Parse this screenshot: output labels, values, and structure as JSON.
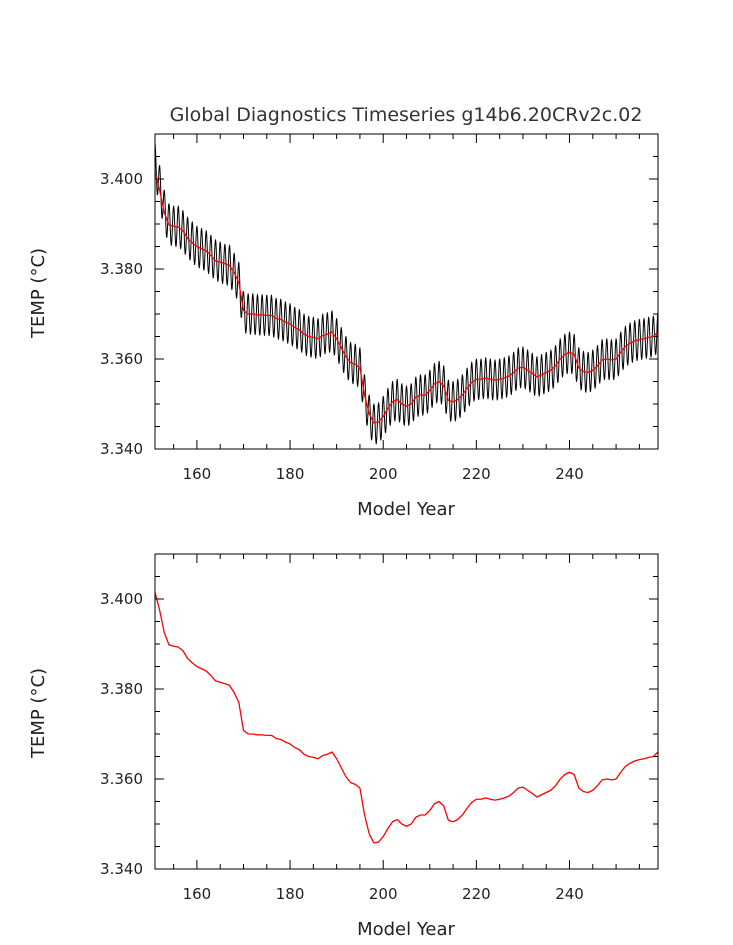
{
  "chart_data": [
    {
      "type": "line",
      "title": "Global Diagnostics Timeseries g14b6.20CRv2c.02",
      "xlabel": "Model Year",
      "ylabel": "TEMP (°C)",
      "xlim": [
        151,
        259
      ],
      "ylim": [
        3.34,
        3.41
      ],
      "xticks": [
        "160",
        "180",
        "200",
        "220",
        "240"
      ],
      "yticks": [
        "3.340",
        "3.360",
        "3.380",
        "3.400"
      ],
      "grid": false,
      "series": [
        {
          "kind": "monthly",
          "color": "#000000",
          "seasonal_amplitude": 0.0045,
          "x": [
            151,
            152,
            153,
            154,
            155,
            156,
            157,
            158,
            159,
            160,
            161,
            162,
            163,
            164,
            165,
            166,
            167,
            168,
            169,
            170,
            171,
            172,
            173,
            174,
            175,
            176,
            177,
            178,
            179,
            180,
            181,
            182,
            183,
            184,
            185,
            186,
            187,
            188,
            189,
            190,
            191,
            192,
            193,
            194,
            195,
            196,
            197,
            198,
            199,
            200,
            201,
            202,
            203,
            204,
            205,
            206,
            207,
            208,
            209,
            210,
            211,
            212,
            213,
            214,
            215,
            216,
            217,
            218,
            219,
            220,
            221,
            222,
            223,
            224,
            225,
            226,
            227,
            228,
            229,
            230,
            231,
            232,
            233,
            234,
            235,
            236,
            237,
            238,
            239,
            240,
            241,
            242,
            243,
            244,
            245,
            246,
            247,
            248,
            249,
            250,
            251,
            252,
            253,
            254,
            255,
            256,
            257,
            258,
            259
          ],
          "y": [
            3.4035,
            3.3985,
            3.393,
            3.39,
            3.3895,
            3.3895,
            3.3885,
            3.387,
            3.386,
            3.385,
            3.3845,
            3.384,
            3.383,
            3.382,
            3.3815,
            3.381,
            3.3808,
            3.379,
            3.377,
            3.3705,
            3.37,
            3.37,
            3.3698,
            3.3698,
            3.3697,
            3.3697,
            3.369,
            3.3688,
            3.3682,
            3.3678,
            3.367,
            3.3665,
            3.3655,
            3.365,
            3.3648,
            3.3645,
            3.3655,
            3.3658,
            3.3662,
            3.3645,
            3.3625,
            3.3605,
            3.3592,
            3.3588,
            3.358,
            3.352,
            3.3475,
            3.3455,
            3.3458,
            3.3472,
            3.349,
            3.3505,
            3.351,
            3.35,
            3.3495,
            3.35,
            3.3515,
            3.352,
            3.352,
            3.353,
            3.3545,
            3.355,
            3.354,
            3.3508,
            3.3505,
            3.351,
            3.352,
            3.3535,
            3.3548,
            3.3555,
            3.3555,
            3.3558,
            3.3555,
            3.3553,
            3.3555,
            3.3558,
            3.3562,
            3.357,
            3.358,
            3.3582,
            3.3575,
            3.3568,
            3.356,
            3.3565,
            3.357,
            3.3575,
            3.3585,
            3.36,
            3.361,
            3.3615,
            3.361,
            3.358,
            3.3572,
            3.357,
            3.3575,
            3.3585,
            3.3598,
            3.36,
            3.3598,
            3.36,
            3.3615,
            3.3628,
            3.3635,
            3.364,
            3.3643,
            3.3645,
            3.3648,
            3.365,
            3.366
          ]
        },
        {
          "kind": "smoothed",
          "color": "#ff0000",
          "x": [
            151,
            152,
            153,
            154,
            155,
            156,
            157,
            158,
            159,
            160,
            161,
            162,
            163,
            164,
            165,
            166,
            167,
            168,
            169,
            170,
            171,
            172,
            173,
            174,
            175,
            176,
            177,
            178,
            179,
            180,
            181,
            182,
            183,
            184,
            185,
            186,
            187,
            188,
            189,
            190,
            191,
            192,
            193,
            194,
            195,
            196,
            197,
            198,
            199,
            200,
            201,
            202,
            203,
            204,
            205,
            206,
            207,
            208,
            209,
            210,
            211,
            212,
            213,
            214,
            215,
            216,
            217,
            218,
            219,
            220,
            221,
            222,
            223,
            224,
            225,
            226,
            227,
            228,
            229,
            230,
            231,
            232,
            233,
            234,
            235,
            236,
            237,
            238,
            239,
            240,
            241,
            242,
            243,
            244,
            245,
            246,
            247,
            248,
            249,
            250,
            251,
            252,
            253,
            254,
            255,
            256,
            257,
            258,
            259
          ],
          "y": [
            3.4015,
            3.3975,
            3.3925,
            3.3898,
            3.3895,
            3.3893,
            3.3885,
            3.3868,
            3.3858,
            3.385,
            3.3845,
            3.384,
            3.383,
            3.3818,
            3.3815,
            3.3812,
            3.3808,
            3.3792,
            3.377,
            3.3708,
            3.37,
            3.37,
            3.3698,
            3.3698,
            3.3697,
            3.3697,
            3.369,
            3.3688,
            3.3682,
            3.3678,
            3.367,
            3.3665,
            3.3655,
            3.365,
            3.3648,
            3.3645,
            3.3652,
            3.3655,
            3.366,
            3.3645,
            3.3625,
            3.3605,
            3.3592,
            3.3588,
            3.358,
            3.352,
            3.3478,
            3.3458,
            3.346,
            3.3472,
            3.349,
            3.3505,
            3.351,
            3.35,
            3.3495,
            3.35,
            3.3515,
            3.352,
            3.352,
            3.353,
            3.3545,
            3.355,
            3.354,
            3.3508,
            3.3505,
            3.351,
            3.352,
            3.3535,
            3.3548,
            3.3555,
            3.3555,
            3.3558,
            3.3555,
            3.3553,
            3.3555,
            3.3558,
            3.3562,
            3.357,
            3.358,
            3.3582,
            3.3575,
            3.3568,
            3.356,
            3.3565,
            3.357,
            3.3575,
            3.3585,
            3.36,
            3.361,
            3.3615,
            3.361,
            3.358,
            3.3572,
            3.357,
            3.3575,
            3.3585,
            3.3598,
            3.36,
            3.3598,
            3.36,
            3.3615,
            3.3628,
            3.3635,
            3.364,
            3.3643,
            3.3645,
            3.3648,
            3.365,
            3.366
          ]
        }
      ]
    },
    {
      "type": "line",
      "xlabel": "Model Year",
      "ylabel": "TEMP (°C)",
      "xlim": [
        151,
        259
      ],
      "ylim": [
        3.34,
        3.41
      ],
      "xticks": [
        "160",
        "180",
        "200",
        "220",
        "240"
      ],
      "yticks": [
        "3.340",
        "3.360",
        "3.380",
        "3.400"
      ],
      "grid": false,
      "series": [
        {
          "kind": "smoothed",
          "color": "#ff0000",
          "x": [
            151,
            152,
            153,
            154,
            155,
            156,
            157,
            158,
            159,
            160,
            161,
            162,
            163,
            164,
            165,
            166,
            167,
            168,
            169,
            170,
            171,
            172,
            173,
            174,
            175,
            176,
            177,
            178,
            179,
            180,
            181,
            182,
            183,
            184,
            185,
            186,
            187,
            188,
            189,
            190,
            191,
            192,
            193,
            194,
            195,
            196,
            197,
            198,
            199,
            200,
            201,
            202,
            203,
            204,
            205,
            206,
            207,
            208,
            209,
            210,
            211,
            212,
            213,
            214,
            215,
            216,
            217,
            218,
            219,
            220,
            221,
            222,
            223,
            224,
            225,
            226,
            227,
            228,
            229,
            230,
            231,
            232,
            233,
            234,
            235,
            236,
            237,
            238,
            239,
            240,
            241,
            242,
            243,
            244,
            245,
            246,
            247,
            248,
            249,
            250,
            251,
            252,
            253,
            254,
            255,
            256,
            257,
            258,
            259
          ],
          "y": [
            3.4015,
            3.3975,
            3.3925,
            3.3898,
            3.3895,
            3.3893,
            3.3885,
            3.3868,
            3.3858,
            3.385,
            3.3845,
            3.384,
            3.383,
            3.3818,
            3.3815,
            3.3812,
            3.3808,
            3.3792,
            3.377,
            3.3708,
            3.37,
            3.37,
            3.3698,
            3.3698,
            3.3697,
            3.3697,
            3.369,
            3.3688,
            3.3682,
            3.3678,
            3.367,
            3.3665,
            3.3655,
            3.365,
            3.3648,
            3.3645,
            3.3652,
            3.3655,
            3.366,
            3.3645,
            3.3625,
            3.3605,
            3.3592,
            3.3588,
            3.358,
            3.352,
            3.3478,
            3.3458,
            3.346,
            3.3472,
            3.349,
            3.3505,
            3.351,
            3.35,
            3.3495,
            3.35,
            3.3515,
            3.352,
            3.352,
            3.353,
            3.3545,
            3.355,
            3.354,
            3.3508,
            3.3505,
            3.351,
            3.352,
            3.3535,
            3.3548,
            3.3555,
            3.3555,
            3.3558,
            3.3555,
            3.3553,
            3.3555,
            3.3558,
            3.3562,
            3.357,
            3.358,
            3.3582,
            3.3575,
            3.3568,
            3.356,
            3.3565,
            3.357,
            3.3575,
            3.3585,
            3.36,
            3.361,
            3.3615,
            3.361,
            3.358,
            3.3572,
            3.357,
            3.3575,
            3.3585,
            3.3598,
            3.36,
            3.3598,
            3.36,
            3.3615,
            3.3628,
            3.3635,
            3.364,
            3.3643,
            3.3645,
            3.3648,
            3.365,
            3.366
          ]
        }
      ]
    }
  ]
}
